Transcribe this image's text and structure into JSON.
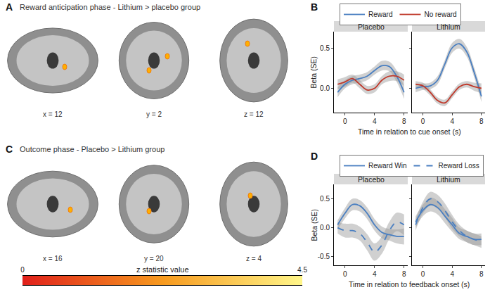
{
  "brain_panels": [
    {
      "label": "A",
      "title": "Reward anticipation phase - Lithium > placebo group",
      "slices": [
        "x = 12",
        "y = 2",
        "z = 12"
      ]
    },
    {
      "label": "C",
      "title": "Outcome phase - Placebo > Lithium group",
      "slices": [
        "x = 16",
        "y = 20",
        "z = 4"
      ]
    }
  ],
  "colorbar": {
    "title": "z statistic value",
    "range": [
      0,
      4.5
    ],
    "ticks": [
      0,
      4.5
    ],
    "colors": [
      "#e0201b",
      "#f79a1e",
      "#fff68a"
    ]
  },
  "chart_data": [
    {
      "type": "line",
      "label": "B",
      "x_label": "Time in relation to cue onset (s)",
      "y_label": "Beta (SE)",
      "xlim": [
        -1.5,
        8.5
      ],
      "xticks": [
        0,
        4,
        8
      ],
      "ylim": [
        -0.3,
        0.7
      ],
      "yticks": [
        {
          "value": 0,
          "label": "0.0"
        },
        {
          "value": 0.5,
          "label": "0.5"
        }
      ],
      "legend": "top",
      "x": [
        -1,
        0,
        1,
        2,
        3,
        4,
        5,
        6,
        7,
        8
      ],
      "facets": [
        {
          "title": "Placebo",
          "series": [
            {
              "name": "Reward",
              "color": "#4a7fc1",
              "line_style": "solid",
              "values": [
                -0.05,
                0.05,
                0.1,
                0.12,
                0.15,
                0.22,
                0.28,
                0.27,
                0.15,
                -0.05
              ],
              "se": [
                0.06,
                0.05,
                0.05,
                0.05,
                0.05,
                0.05,
                0.06,
                0.06,
                0.07,
                0.08
              ]
            },
            {
              "name": "No reward",
              "color": "#c0392b",
              "line_style": "solid",
              "values": [
                0.05,
                0.08,
                0.12,
                0.05,
                -0.02,
                0.0,
                0.1,
                0.15,
                0.15,
                0.1
              ],
              "se": [
                0.06,
                0.06,
                0.05,
                0.05,
                0.05,
                0.05,
                0.05,
                0.06,
                0.06,
                0.07
              ]
            }
          ]
        },
        {
          "title": "Lithium",
          "series": [
            {
              "name": "Reward",
              "color": "#4a7fc1",
              "line_style": "solid",
              "values": [
                0.0,
                0.02,
                0.03,
                0.1,
                0.3,
                0.5,
                0.55,
                0.45,
                0.2,
                -0.1
              ],
              "se": [
                0.05,
                0.04,
                0.04,
                0.05,
                0.05,
                0.06,
                0.06,
                0.06,
                0.06,
                0.07
              ]
            },
            {
              "name": "No reward",
              "color": "#c0392b",
              "line_style": "solid",
              "values": [
                0.05,
                0.03,
                -0.05,
                -0.15,
                -0.18,
                -0.08,
                0.02,
                0.05,
                0.02,
                0.0
              ],
              "se": [
                0.04,
                0.04,
                0.04,
                0.04,
                0.04,
                0.04,
                0.04,
                0.04,
                0.05,
                0.06
              ]
            }
          ]
        }
      ]
    },
    {
      "type": "line",
      "label": "D",
      "x_label": "Time in relation to feedback onset (s)",
      "y_label": "Beta (SE)",
      "xlim": [
        -1.5,
        8.5
      ],
      "xticks": [
        0,
        4,
        8
      ],
      "ylim": [
        -0.65,
        0.75
      ],
      "yticks": [
        -0.5,
        {
          "value": 0,
          "label": "0.0"
        },
        0.5
      ],
      "legend": "top",
      "x": [
        -1,
        0,
        1,
        2,
        3,
        4,
        5,
        6,
        7,
        8
      ],
      "facets": [
        {
          "title": "Placebo",
          "series": [
            {
              "name": "Reward Win",
              "color": "#4a7fc1",
              "line_style": "solid",
              "values": [
                0.05,
                0.25,
                0.4,
                0.38,
                0.25,
                0.05,
                -0.08,
                -0.12,
                -0.15,
                -0.15
              ],
              "se": [
                0.08,
                0.09,
                0.1,
                0.1,
                0.1,
                0.1,
                0.1,
                0.1,
                0.12,
                0.14
              ]
            },
            {
              "name": "Reward Loss",
              "color": "#4a7fc1",
              "line_style": "dashed",
              "values": [
                0.0,
                -0.05,
                -0.05,
                -0.1,
                -0.25,
                -0.42,
                -0.3,
                -0.05,
                0.1,
                0.05
              ],
              "se": [
                0.1,
                0.12,
                0.12,
                0.12,
                0.14,
                0.15,
                0.15,
                0.15,
                0.16,
                0.18
              ]
            }
          ]
        },
        {
          "title": "Lithium",
          "series": [
            {
              "name": "Reward Win",
              "color": "#4a7fc1",
              "line_style": "solid",
              "values": [
                0.1,
                0.3,
                0.4,
                0.35,
                0.2,
                0.05,
                -0.1,
                -0.15,
                -0.2,
                -0.2
              ],
              "se": [
                0.1,
                0.1,
                0.12,
                0.12,
                0.12,
                0.12,
                0.1,
                0.1,
                0.1,
                0.1
              ]
            },
            {
              "name": "Reward Loss",
              "color": "#4a7fc1",
              "line_style": "dashed",
              "values": [
                0.05,
                0.35,
                0.5,
                0.45,
                0.3,
                0.1,
                -0.05,
                -0.15,
                -0.2,
                -0.25
              ],
              "se": [
                0.1,
                0.1,
                0.12,
                0.12,
                0.12,
                0.12,
                0.1,
                0.1,
                0.1,
                0.1
              ]
            }
          ]
        }
      ]
    }
  ]
}
